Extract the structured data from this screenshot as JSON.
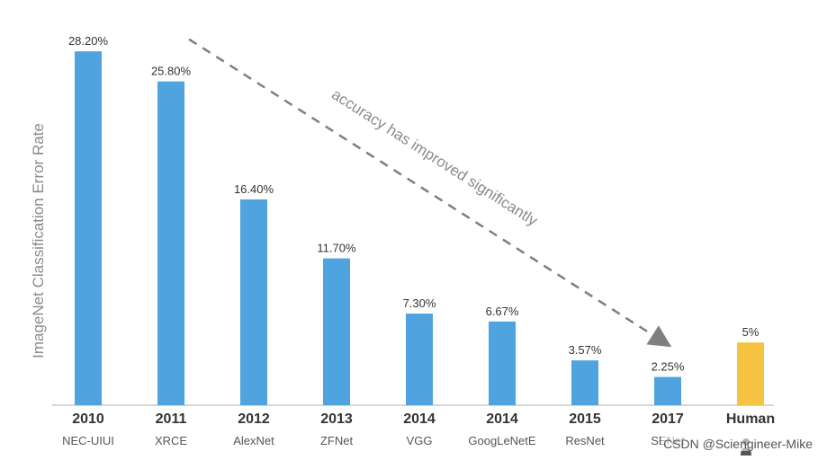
{
  "chart_data": {
    "type": "bar",
    "ylabel": "ImageNet Classification Error Rate",
    "ylim": [
      0,
      30
    ],
    "grid": false,
    "categories": [
      "2010",
      "2011",
      "2012",
      "2013",
      "2014",
      "2014",
      "2015",
      "2017",
      "Human"
    ],
    "subcategories": [
      "NEC-UIUI",
      "XRCE",
      "AlexNet",
      "ZFNet",
      "VGG",
      "GoogLeNetE",
      "ResNet",
      "SENet",
      ""
    ],
    "values": [
      28.2,
      25.8,
      16.4,
      11.7,
      7.3,
      6.67,
      3.57,
      2.25,
      5
    ],
    "value_labels": [
      "28.20%",
      "25.80%",
      "16.40%",
      "11.70%",
      "7.30%",
      "6.67%",
      "3.57%",
      "2.25%",
      "5%"
    ],
    "colors": {
      "bar": "#4fa3de",
      "human_bar": "#f5c242",
      "axis": "#c8c8c8",
      "annotation": "#7f7f7f"
    },
    "annotation": {
      "text": "accuracy has improved significantly",
      "from_category_index": 1,
      "to_category_index": 7
    }
  },
  "watermark": "CSDN @Sciengineer-Mike",
  "icons": {
    "human": "person-icon"
  }
}
